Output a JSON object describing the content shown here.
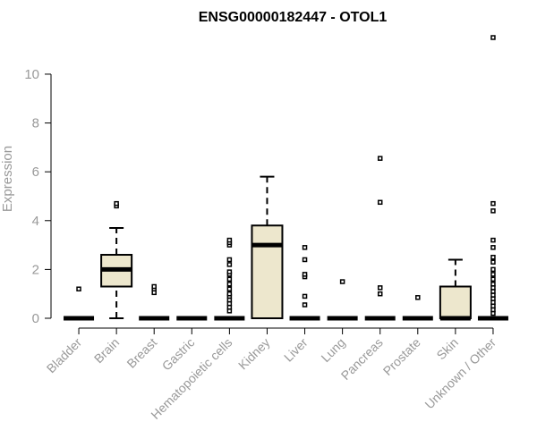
{
  "chart_data": {
    "type": "boxplot",
    "title": "ENSG00000182447 - OTOL1",
    "xlabel": "",
    "ylabel": "Expression",
    "ylim": [
      0,
      11.5
    ],
    "yticks": [
      0,
      2,
      4,
      6,
      8,
      10
    ],
    "categories": [
      "Bladder",
      "Brain",
      "Breast",
      "Gastric",
      "Hematopoietic cells",
      "Kidney",
      "Liver",
      "Lung",
      "Pancreas",
      "Prostate",
      "Skin",
      "Unknown / Other"
    ],
    "box_color": "#ede7cd",
    "boxes": [
      {
        "category": "Bladder",
        "min": 0,
        "q1": 0,
        "median": 0,
        "q3": 0,
        "max": 0,
        "outliers": [
          1.2
        ]
      },
      {
        "category": "Brain",
        "min": 0,
        "q1": 1.3,
        "median": 2.0,
        "q3": 2.6,
        "max": 3.7,
        "outliers": [
          4.6,
          4.7
        ]
      },
      {
        "category": "Breast",
        "min": 0,
        "q1": 0,
        "median": 0,
        "q3": 0,
        "max": 0,
        "outliers": [
          1.05,
          1.2,
          1.3
        ]
      },
      {
        "category": "Gastric",
        "min": 0,
        "q1": 0,
        "median": 0,
        "q3": 0,
        "max": 0,
        "outliers": []
      },
      {
        "category": "Hematopoietic cells",
        "min": 0,
        "q1": 0,
        "median": 0,
        "q3": 0,
        "max": 0,
        "outliers": [
          0.3,
          0.45,
          0.6,
          0.75,
          0.9,
          1.0,
          1.2,
          1.4,
          1.6,
          1.8,
          1.9,
          2.2,
          2.4,
          3.0,
          3.1,
          3.2
        ]
      },
      {
        "category": "Kidney",
        "min": 0,
        "q1": 0,
        "median": 3.0,
        "q3": 3.8,
        "max": 5.8,
        "outliers": []
      },
      {
        "category": "Liver",
        "min": 0,
        "q1": 0,
        "median": 0,
        "q3": 0,
        "max": 0,
        "outliers": [
          0.55,
          0.9,
          1.7,
          1.8,
          2.4,
          2.9
        ]
      },
      {
        "category": "Lung",
        "min": 0,
        "q1": 0,
        "median": 0,
        "q3": 0,
        "max": 0,
        "outliers": [
          1.5
        ]
      },
      {
        "category": "Pancreas",
        "min": 0,
        "q1": 0,
        "median": 0,
        "q3": 0,
        "max": 0,
        "outliers": [
          1.0,
          1.25,
          4.75,
          6.55
        ]
      },
      {
        "category": "Prostate",
        "min": 0,
        "q1": 0,
        "median": 0,
        "q3": 0,
        "max": 0,
        "outliers": [
          0.85
        ]
      },
      {
        "category": "Skin",
        "min": 0,
        "q1": 0,
        "median": 0,
        "q3": 1.3,
        "max": 2.4,
        "outliers": []
      },
      {
        "category": "Unknown / Other",
        "min": 0,
        "q1": 0,
        "median": 0,
        "q3": 0,
        "max": 0,
        "outliers": [
          0.2,
          0.35,
          0.5,
          0.65,
          0.8,
          0.95,
          1.1,
          1.25,
          1.4,
          1.6,
          1.8,
          2.0,
          2.3,
          2.5,
          2.9,
          3.2,
          4.4,
          4.7,
          11.5
        ]
      }
    ],
    "grid": false,
    "legend": "none"
  }
}
